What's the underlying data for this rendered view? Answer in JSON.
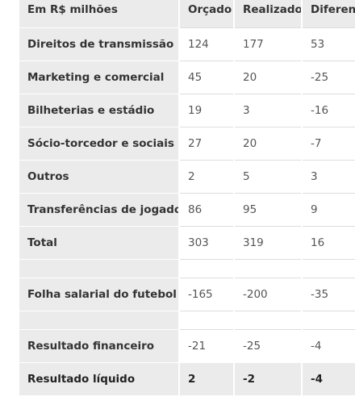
{
  "table": {
    "columns": [
      "Em R$ milhões",
      "Orçado",
      "Realizado",
      "Diferença"
    ],
    "rows": [
      [
        "Direitos de transmissão",
        124,
        177,
        53
      ],
      [
        "Marketing e comercial",
        45,
        20,
        -25
      ],
      [
        "Bilheterias e estádio",
        19,
        3,
        -16
      ],
      [
        "Sócio-torcedor e sociais",
        27,
        20,
        -7
      ],
      [
        "Outros",
        2,
        5,
        3
      ],
      [
        "Transferências de jogadores",
        86,
        95,
        9
      ],
      [
        "Total",
        303,
        319,
        16
      ],
      [
        "Folha salarial do futebol",
        -165,
        -200,
        -35
      ],
      [
        "Resultado financeiro",
        -21,
        -25,
        -4
      ],
      [
        "Resultado líquido",
        2,
        -2,
        -4
      ]
    ]
  }
}
